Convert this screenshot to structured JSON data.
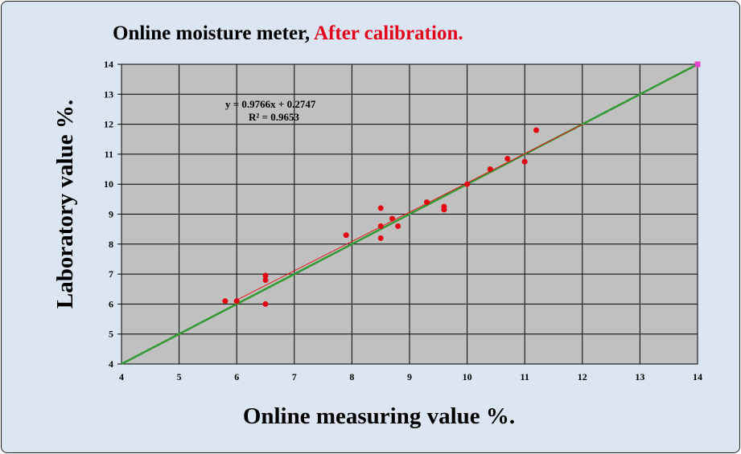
{
  "chart_data": {
    "type": "scatter",
    "title_main": "Online moisture meter, ",
    "title_highlight": "After calibration.",
    "xlabel": "Online measuring value %.",
    "ylabel": "Laboratory value %.",
    "xlim": [
      4,
      14
    ],
    "ylim": [
      4,
      14
    ],
    "xticks": [
      4,
      5,
      6,
      7,
      8,
      9,
      10,
      11,
      12,
      13,
      14
    ],
    "yticks": [
      4,
      5,
      6,
      7,
      8,
      9,
      10,
      11,
      12,
      13,
      14
    ],
    "grid": true,
    "equation_text": "y = 0.9766x + 0.2747",
    "r2_text": "R² = 0.9653",
    "trendline": {
      "slope": 0.9766,
      "intercept": 0.2747,
      "x_range": [
        6,
        12
      ],
      "color": "#e41a1c"
    },
    "reference_line": {
      "from": [
        4,
        4
      ],
      "to": [
        14,
        14
      ],
      "color": "#339933"
    },
    "marker_end": {
      "x": 14,
      "y": 14,
      "color": "#e645c8"
    },
    "points": [
      {
        "x": 5.8,
        "y": 6.1
      },
      {
        "x": 6.0,
        "y": 6.1
      },
      {
        "x": 6.5,
        "y": 6.95
      },
      {
        "x": 6.5,
        "y": 6.8
      },
      {
        "x": 6.5,
        "y": 6.0
      },
      {
        "x": 7.9,
        "y": 8.3
      },
      {
        "x": 8.5,
        "y": 9.2
      },
      {
        "x": 8.5,
        "y": 8.6
      },
      {
        "x": 8.5,
        "y": 8.2
      },
      {
        "x": 8.7,
        "y": 8.85
      },
      {
        "x": 8.8,
        "y": 8.6
      },
      {
        "x": 9.3,
        "y": 9.4
      },
      {
        "x": 9.6,
        "y": 9.25
      },
      {
        "x": 9.6,
        "y": 9.15
      },
      {
        "x": 10.0,
        "y": 10.0
      },
      {
        "x": 10.4,
        "y": 10.5
      },
      {
        "x": 10.7,
        "y": 10.85
      },
      {
        "x": 11.0,
        "y": 10.75
      },
      {
        "x": 11.2,
        "y": 11.8
      }
    ],
    "point_color": "#e30613",
    "plot_background": "#c0c0c0"
  }
}
